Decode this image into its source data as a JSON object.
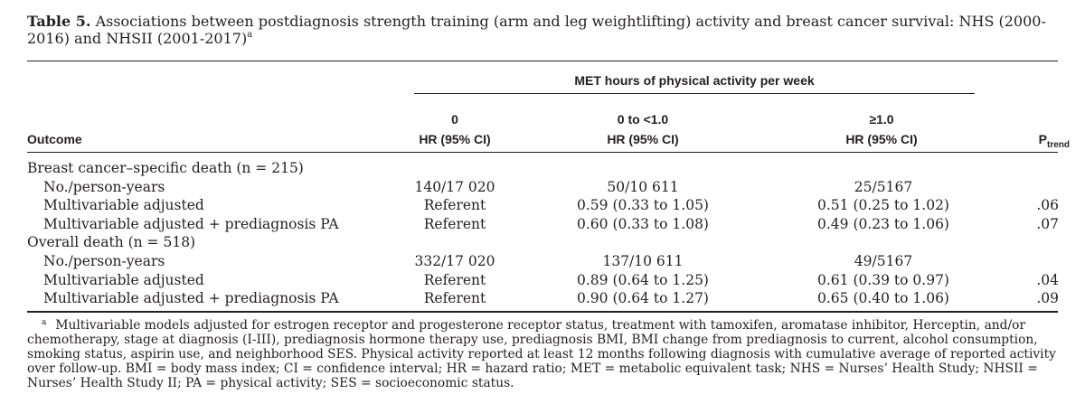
{
  "caption": {
    "label": "Table 5.",
    "text": "Associations between postdiagnosis strength training (arm and leg weightlifting) activity and breast cancer survival: NHS (2000-2016) and NHSII (2001-2017)",
    "mark": "a"
  },
  "header": {
    "span_label": "MET hours of physical activity per week",
    "outcome": "Outcome",
    "col0_top": "0",
    "col0_bottom": "HR (95% CI)",
    "col1_top": "0 to <1.0",
    "col1_bottom": "HR (95% CI)",
    "col2_top": "≥1.0",
    "col2_bottom": "HR (95% CI)",
    "ptrend_main": "P",
    "ptrend_sub": "trend"
  },
  "rows": [
    {
      "label": "Breast cancer–specific death (n = 215)",
      "type": "group",
      "c0": "",
      "c1": "",
      "c2": "",
      "p": ""
    },
    {
      "label": "No./person-years",
      "type": "indent",
      "c0": "140/17 020",
      "c1": "50/10 611",
      "c2": "25/5167",
      "p": ""
    },
    {
      "label": "Multivariable adjusted",
      "type": "indent",
      "c0": "Referent",
      "c1": "0.59 (0.33 to 1.05)",
      "c2": "0.51 (0.25 to 1.02)",
      "p": ".06"
    },
    {
      "label": "Multivariable adjusted + prediagnosis PA",
      "type": "indent",
      "c0": "Referent",
      "c1": "0.60 (0.33 to 1.08)",
      "c2": "0.49 (0.23 to 1.06)",
      "p": ".07"
    },
    {
      "label": "Overall death (n = 518)",
      "type": "group",
      "c0": "",
      "c1": "",
      "c2": "",
      "p": ""
    },
    {
      "label": "No./person-years",
      "type": "indent",
      "c0": "332/17 020",
      "c1": "137/10 611",
      "c2": "49/5167",
      "p": ""
    },
    {
      "label": "Multivariable adjusted",
      "type": "indent",
      "c0": "Referent",
      "c1": "0.89 (0.64 to 1.25)",
      "c2": "0.61 (0.39 to 0.97)",
      "p": ".04"
    },
    {
      "label": "Multivariable adjusted + prediagnosis PA",
      "type": "indent",
      "c0": "Referent",
      "c1": "0.90 (0.64 to 1.27)",
      "c2": "0.65 (0.40 to 1.06)",
      "p": ".09"
    }
  ],
  "footnote": {
    "mark": "a",
    "text": "Multivariable models adjusted for estrogen receptor and progesterone receptor status, treatment with tamoxifen, aromatase inhibitor, Herceptin, and/or chemotherapy, stage at diagnosis (I-III), prediagnosis hormone therapy use, prediagnosis BMI, BMI change from prediagnosis to current, alcohol consumption, smoking status, aspirin use, and neighborhood SES. Physical activity reported at least 12 months following diagnosis with cumulative average of reported activity over follow-up. BMI = body mass index; CI = confidence interval; HR = hazard ratio; MET = metabolic equivalent task; NHS = Nurses’ Health Study; NHSII = Nurses’ Health Study II; PA = physical activity; SES = socioeconomic status."
  }
}
